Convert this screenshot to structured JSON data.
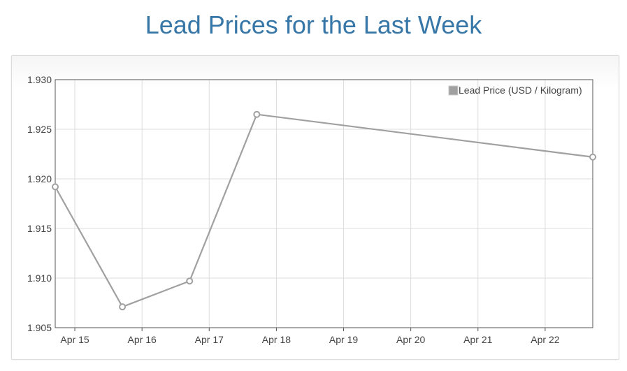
{
  "page": {
    "title": "Lead Prices for the Last Week"
  },
  "colors": {
    "title": "#3677a8",
    "series": "#a0a0a0",
    "grid": "#dddddd",
    "axis": "#555555"
  },
  "chart_data": {
    "type": "line",
    "title": "",
    "xlabel": "",
    "ylabel": "",
    "series": [
      {
        "name": "Lead Price (USD / Kilogram)",
        "color": "#a0a0a0",
        "points": [
          {
            "x": "2024-04-14T17:00",
            "y": 1.9192
          },
          {
            "x": "2024-04-15T17:00",
            "y": 1.9071
          },
          {
            "x": "2024-04-16T17:00",
            "y": 1.9097
          },
          {
            "x": "2024-04-17T17:00",
            "y": 1.9265
          },
          {
            "x": "2024-04-22T17:00",
            "y": 1.9222
          }
        ]
      }
    ],
    "x_ticks": [
      "Apr 15",
      "Apr 16",
      "Apr 17",
      "Apr 18",
      "Apr 19",
      "Apr 20",
      "Apr 21",
      "Apr 22"
    ],
    "x_tick_dates": [
      "2024-04-15",
      "2024-04-16",
      "2024-04-17",
      "2024-04-18",
      "2024-04-19",
      "2024-04-20",
      "2024-04-21",
      "2024-04-22"
    ],
    "xlim": [
      "2024-04-14T17:00",
      "2024-04-22T17:00"
    ],
    "y_ticks": [
      "1.930",
      "1.925",
      "1.920",
      "1.915",
      "1.910",
      "1.905"
    ],
    "ylim": [
      1.905,
      1.93
    ],
    "grid": true,
    "legend_position": "top-right"
  }
}
